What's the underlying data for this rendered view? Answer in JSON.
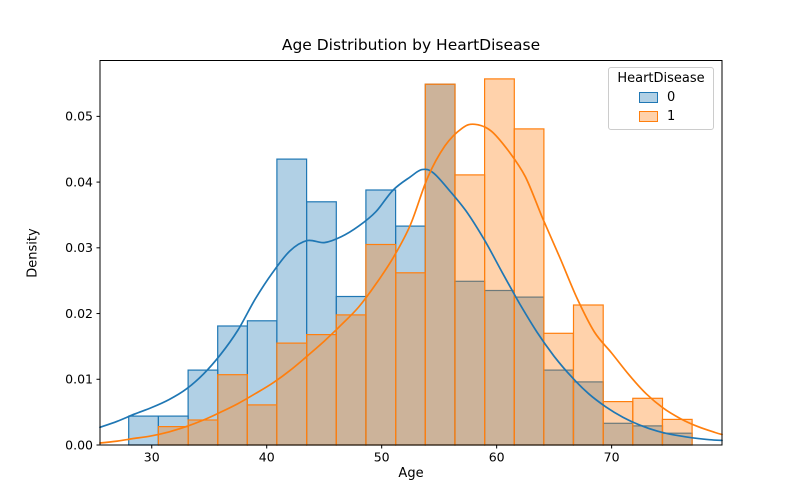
{
  "title": "Age Distribution by HeartDisease",
  "xlabel": "Age",
  "ylabel": "Density",
  "legend": {
    "title": "HeartDisease",
    "entries": [
      {
        "label": "0",
        "color": "#1f77b4",
        "fill": "rgba(31,119,180,0.35)"
      },
      {
        "label": "1",
        "color": "#ff7f0e",
        "fill": "rgba(255,127,14,0.35)"
      }
    ]
  },
  "chart_data": {
    "type": "histogram+kde",
    "title": "Age Distribution by HeartDisease",
    "xlabel": "Age",
    "ylabel": "Density",
    "xlim": [
      25.5,
      79.6
    ],
    "ylim": [
      0,
      0.0585
    ],
    "x_ticks": [
      30,
      40,
      50,
      60,
      70
    ],
    "y_ticks": [
      "0.00",
      "0.01",
      "0.02",
      "0.03",
      "0.04",
      "0.05"
    ],
    "grid": false,
    "legend_position": "upper right",
    "bin_edges": [
      28.0,
      30.58,
      33.16,
      35.74,
      38.32,
      40.89,
      43.47,
      46.05,
      48.63,
      51.21,
      53.79,
      56.37,
      58.95,
      61.53,
      64.11,
      66.68,
      69.26,
      71.84,
      74.42,
      77.0
    ],
    "series": [
      {
        "name": "0",
        "line_color": "#1f77b4",
        "fill_color": "rgba(31,119,180,0.35)",
        "bar_heights": [
          0.0044,
          0.0044,
          0.0114,
          0.0181,
          0.0189,
          0.0435,
          0.037,
          0.0226,
          0.0388,
          0.0333,
          0.0549,
          0.0249,
          0.0235,
          0.0225,
          0.0114,
          0.0096,
          0.0033,
          0.0029,
          0.0018
        ],
        "kde_x": [
          25.5,
          27,
          28.5,
          30,
          31.5,
          33,
          34.5,
          36,
          37.5,
          39,
          40.5,
          42,
          43.5,
          45,
          46.5,
          48,
          49.5,
          51,
          52.5,
          53.5,
          54.5,
          56,
          57.5,
          59,
          60.5,
          62,
          63.5,
          65,
          66.5,
          68,
          69.5,
          71,
          72.5,
          74,
          75.5,
          77,
          78.5,
          79.6
        ],
        "kde_y": [
          0.0027,
          0.0036,
          0.0047,
          0.0057,
          0.0069,
          0.0085,
          0.0108,
          0.0138,
          0.0175,
          0.0222,
          0.0262,
          0.0295,
          0.0311,
          0.0308,
          0.0317,
          0.0333,
          0.0355,
          0.0388,
          0.0408,
          0.0419,
          0.0414,
          0.0385,
          0.0352,
          0.031,
          0.0262,
          0.0215,
          0.0172,
          0.0135,
          0.0104,
          0.0078,
          0.0058,
          0.0042,
          0.003,
          0.0021,
          0.0015,
          0.0011,
          0.0008,
          0.0007
        ]
      },
      {
        "name": "1",
        "line_color": "#ff7f0e",
        "fill_color": "rgba(255,127,14,0.35)",
        "bar_heights": [
          0.0,
          0.0028,
          0.0038,
          0.0107,
          0.0061,
          0.0155,
          0.0168,
          0.0198,
          0.0305,
          0.0262,
          0.0549,
          0.0411,
          0.0557,
          0.0481,
          0.017,
          0.0213,
          0.0066,
          0.0071,
          0.0039
        ],
        "kde_x": [
          25.5,
          27,
          28.5,
          30,
          31.5,
          33,
          34.5,
          36,
          37.5,
          39,
          40.5,
          42,
          43.5,
          45,
          46.5,
          48,
          49.5,
          51,
          52.5,
          54,
          55.5,
          57,
          58.1,
          59.5,
          61,
          62.5,
          64,
          65.5,
          67,
          68.5,
          70,
          71.5,
          73,
          74.5,
          76,
          77.5,
          79,
          79.6
        ],
        "kde_y": [
          0.0003,
          0.0006,
          0.001,
          0.0014,
          0.002,
          0.0028,
          0.0038,
          0.005,
          0.0063,
          0.0078,
          0.0094,
          0.0113,
          0.0135,
          0.0158,
          0.0183,
          0.021,
          0.0245,
          0.0285,
          0.0335,
          0.0407,
          0.0455,
          0.0482,
          0.0488,
          0.0478,
          0.0448,
          0.0408,
          0.0345,
          0.0285,
          0.0223,
          0.0172,
          0.014,
          0.0107,
          0.0078,
          0.0056,
          0.004,
          0.0028,
          0.0019,
          0.0016
        ]
      }
    ]
  }
}
